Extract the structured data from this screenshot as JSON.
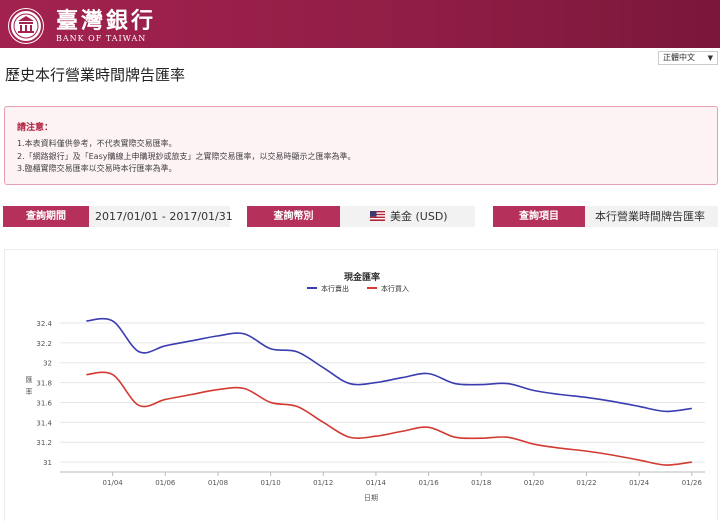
{
  "header": {
    "logo_cn": "臺灣銀行",
    "logo_en": "BANK OF TAIWAN"
  },
  "language": {
    "selected": "正體中文"
  },
  "page": {
    "title": "歷史本行營業時間牌告匯率"
  },
  "notice": {
    "title": "請注意：",
    "lines": [
      "1.本表資料僅供參考，不代表實際交易匯率。",
      "2.「網路銀行」及「Easy購線上申購現鈔或旅支」之實際交易匯率，以交易時顯示之匯率為準。",
      "3.臨櫃實際交易匯率以交易時本行匯率為準。"
    ]
  },
  "query": {
    "period_label": "查詢期間",
    "period_value": "2017/01/01 - 2017/01/31",
    "currency_label": "查詢幣別",
    "currency_value": "美金 (USD)",
    "item_label": "查詢項目",
    "item_value": "本行營業時間牌告匯率"
  },
  "colors": {
    "brand": "#a3224f",
    "sell": "#3b3cb0",
    "buy": "#d23a32"
  },
  "chart_data": {
    "type": "line",
    "title": "現金匯率",
    "xlabel": "日期",
    "ylabel": "匯率",
    "ylim": [
      30.9,
      32.5
    ],
    "yticks": [
      31,
      31.2,
      31.4,
      31.6,
      31.8,
      32,
      32.2,
      32.4
    ],
    "xticks": [
      "01/04",
      "01/06",
      "01/08",
      "01/10",
      "01/12",
      "01/14",
      "01/16",
      "01/18",
      "01/20",
      "01/22",
      "01/24",
      "01/26"
    ],
    "x_range": [
      2,
      26.5
    ],
    "legend_position": "top-center",
    "grid": true,
    "series": [
      {
        "name": "本行賣出",
        "color": "#3b3cb0",
        "points": [
          [
            3,
            32.42
          ],
          [
            4,
            32.42
          ],
          [
            5,
            32.11
          ],
          [
            6,
            32.17
          ],
          [
            7,
            32.22
          ],
          [
            8,
            32.27
          ],
          [
            9,
            32.29
          ],
          [
            10,
            32.14
          ],
          [
            11,
            32.11
          ],
          [
            12,
            31.95
          ],
          [
            13,
            31.79
          ],
          [
            14,
            31.8
          ],
          [
            15,
            31.85
          ],
          [
            16,
            31.89
          ],
          [
            17,
            31.79
          ],
          [
            18,
            31.78
          ],
          [
            19,
            31.79
          ],
          [
            20,
            31.72
          ],
          [
            21,
            31.68
          ],
          [
            22,
            31.65
          ],
          [
            23,
            31.61
          ],
          [
            24,
            31.56
          ],
          [
            25,
            31.51
          ],
          [
            26,
            31.54
          ]
        ]
      },
      {
        "name": "本行買入",
        "color": "#d23a32",
        "points": [
          [
            3,
            31.88
          ],
          [
            4,
            31.88
          ],
          [
            5,
            31.57
          ],
          [
            6,
            31.63
          ],
          [
            7,
            31.68
          ],
          [
            8,
            31.73
          ],
          [
            9,
            31.74
          ],
          [
            10,
            31.6
          ],
          [
            11,
            31.56
          ],
          [
            12,
            31.4
          ],
          [
            13,
            31.25
          ],
          [
            14,
            31.26
          ],
          [
            15,
            31.31
          ],
          [
            16,
            31.35
          ],
          [
            17,
            31.25
          ],
          [
            18,
            31.24
          ],
          [
            19,
            31.25
          ],
          [
            20,
            31.18
          ],
          [
            21,
            31.14
          ],
          [
            22,
            31.11
          ],
          [
            23,
            31.07
          ],
          [
            24,
            31.02
          ],
          [
            25,
            30.97
          ],
          [
            26,
            31
          ]
        ]
      }
    ]
  }
}
